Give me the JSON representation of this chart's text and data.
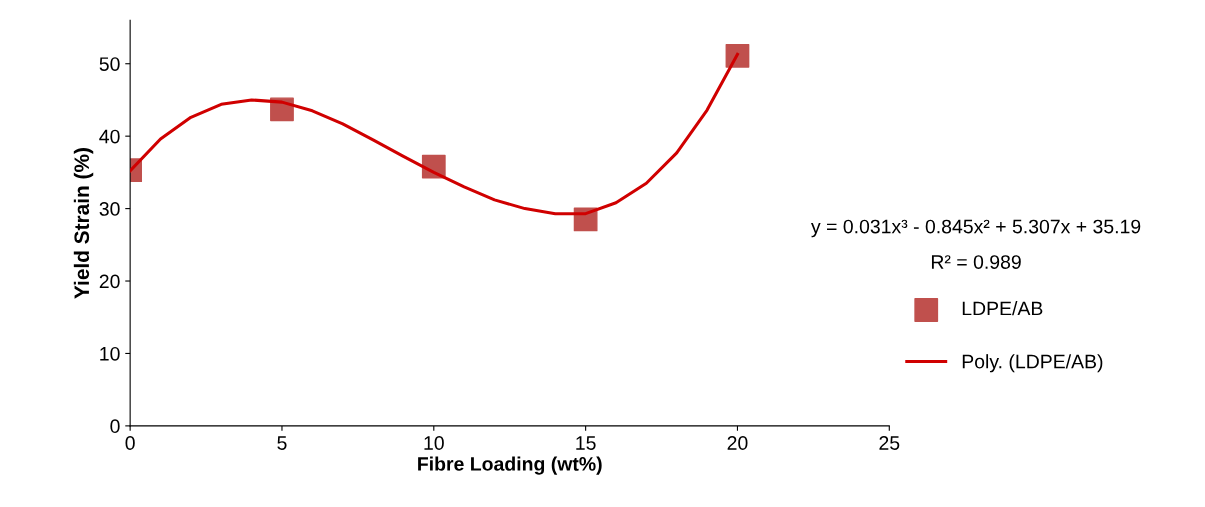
{
  "chart_data": {
    "type": "scatter",
    "xlabel": "Fibre Loading (wt%)",
    "ylabel": "Yield Strain (%)",
    "xlim": [
      0,
      25
    ],
    "xticks": [
      0,
      5,
      10,
      15,
      20,
      25
    ],
    "ylim": [
      0,
      56
    ],
    "yticks": [
      0,
      10,
      20,
      30,
      40,
      50
    ],
    "grid": false,
    "legend": "right",
    "annotations": [
      "y = 0.031x³ - 0.845x² + 5.307x + 35.19",
      "R² = 0.989"
    ],
    "series": [
      {
        "name": "LDPE/AB",
        "marker": "square",
        "color": "#c0504d",
        "x": [
          0,
          5,
          10,
          15,
          20
        ],
        "values": [
          35.3,
          43.7,
          35.8,
          28.5,
          51.1
        ]
      },
      {
        "name": "Poly. (LDPE/AB)",
        "type": "line",
        "marker": "none",
        "color": "#d00000",
        "x": [
          0,
          1,
          2,
          3,
          4,
          5,
          6,
          7,
          8,
          9,
          10,
          11,
          12,
          13,
          14,
          15,
          16,
          17,
          18,
          19,
          20
        ],
        "values": [
          35.2,
          39.6,
          42.6,
          44.4,
          45.0,
          44.7,
          43.5,
          41.7,
          39.5,
          37.2,
          35.0,
          33.0,
          31.2,
          30.0,
          29.3,
          29.3,
          30.8,
          33.5,
          37.7,
          43.6,
          51.3
        ]
      }
    ]
  }
}
